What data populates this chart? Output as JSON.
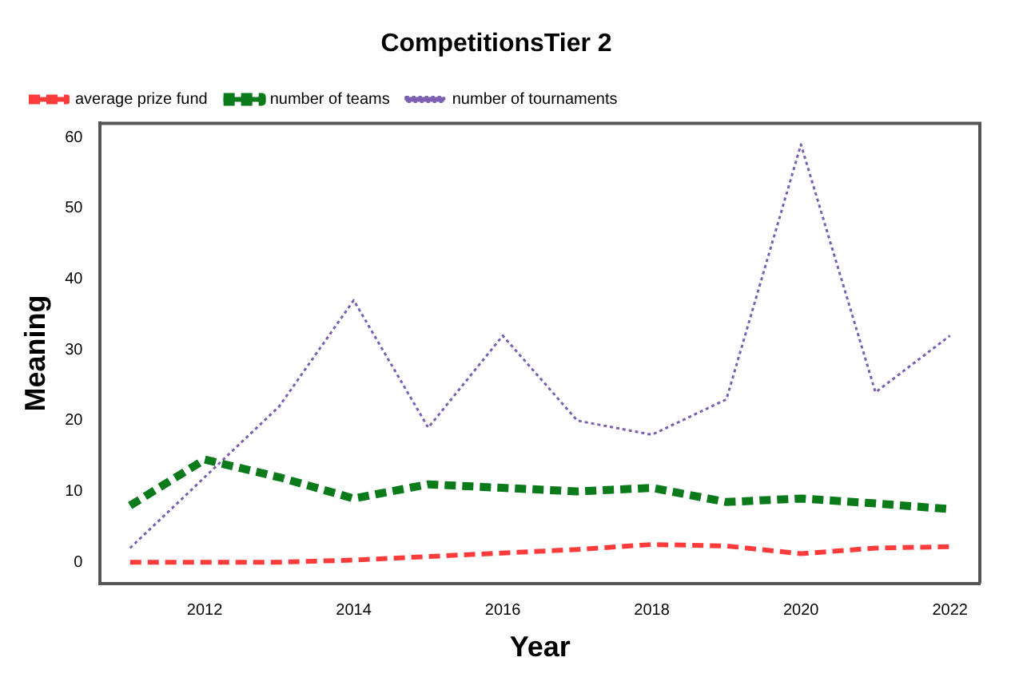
{
  "chart_data": {
    "type": "line",
    "title": "CompetitionsTier 2",
    "xlabel": "Year",
    "ylabel": "Meaning",
    "x": [
      2011,
      2012,
      2013,
      2014,
      2015,
      2016,
      2017,
      2018,
      2019,
      2020,
      2021,
      2022
    ],
    "series": [
      {
        "name": "average prize fund",
        "color": "#ff3b3b",
        "line_style": "dashed",
        "values": [
          0,
          0,
          0,
          0.3,
          0.8,
          1.3,
          1.8,
          2.5,
          2.3,
          1.2,
          2,
          2.2
        ]
      },
      {
        "name": "number of teams",
        "color": "#0a7a1a",
        "line_style": "dashed",
        "values": [
          8,
          14.5,
          12,
          9,
          11,
          10.5,
          10,
          10.5,
          8.5,
          9,
          8.3,
          7.5
        ]
      },
      {
        "name": "number of tournaments",
        "color": "#7b5fb0",
        "line_style": "dotted",
        "values": [
          2,
          12,
          22,
          37,
          19,
          32,
          20,
          18,
          23,
          59,
          24,
          32
        ]
      }
    ],
    "xlim": [
      2010.6,
      2022.4
    ],
    "xticks": [
      2012,
      2014,
      2016,
      2018,
      2020,
      2022
    ],
    "ylim": [
      -3,
      62
    ],
    "yticks": [
      0,
      10,
      20,
      30,
      40,
      50,
      60
    ],
    "grid": false,
    "legend": "top left",
    "marker": "none"
  }
}
